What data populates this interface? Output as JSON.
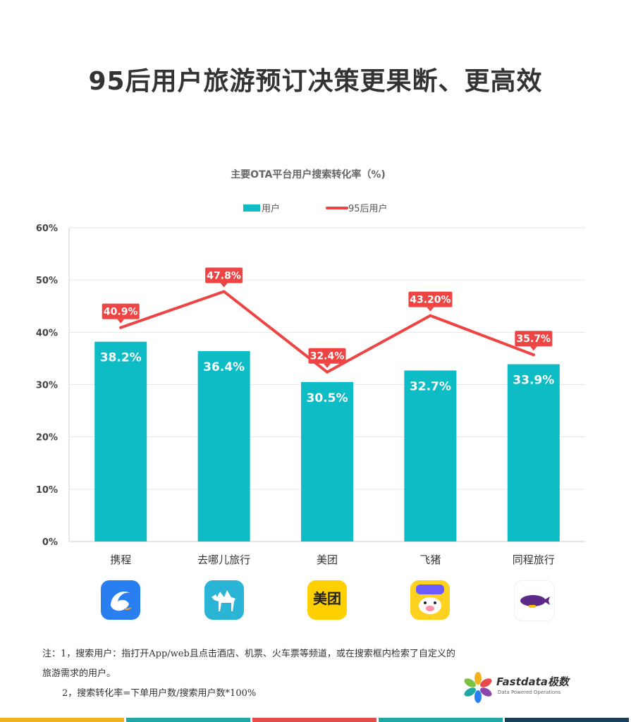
{
  "page": {
    "title": "95后用户旅游预订决策更果断、更高效"
  },
  "notes": {
    "line1": "注：1，搜索用户：指打开App/web且点击酒店、机票、火车票等频道，或在搜索框内检索了自定义的",
    "line2": "旅游需求的用户。",
    "line3": "2，搜索转化率=下单用户数/搜索用户数*100%"
  },
  "logo": {
    "name": "Fastdata极数",
    "tagline": "Data Powered Operations"
  },
  "apps": [
    {
      "name": "携程",
      "icon": "dolphin-icon",
      "color": "#2a7ff0"
    },
    {
      "name": "去哪儿旅行",
      "icon": "camel-icon",
      "color": "#2ab4d6"
    },
    {
      "name": "美团",
      "icon": "meituan-icon",
      "color": "#ffd000"
    },
    {
      "name": "飞猪",
      "icon": "pig-icon",
      "color": "#ffd21f"
    },
    {
      "name": "同程旅行",
      "icon": "blimp-icon",
      "color": "#ffffff"
    }
  ],
  "bottom_strip_colors": [
    "#f0b21f",
    "#1fa7a3",
    "#e64b4b",
    "#1fa7a3",
    "#1a3e5a"
  ],
  "chart_data": {
    "type": "bar",
    "title": "主要OTA平台用户搜索转化率（%)",
    "categories": [
      "携程",
      "去哪儿旅行",
      "美团",
      "飞猪",
      "同程旅行"
    ],
    "series": [
      {
        "name": "用户",
        "kind": "bar",
        "color": "#0dbcc4",
        "values": [
          38.2,
          36.4,
          30.5,
          32.7,
          33.9
        ],
        "labels": [
          "38.2%",
          "36.4%",
          "30.5%",
          "32.7%",
          "33.9%"
        ]
      },
      {
        "name": "95后用户",
        "kind": "line",
        "color": "#ee4444",
        "values": [
          40.9,
          47.8,
          32.4,
          43.2,
          35.7
        ],
        "labels": [
          "40.9%",
          "47.8%",
          "32.4%",
          "43.20%",
          "35.7%"
        ]
      }
    ],
    "y_ticks": [
      "0%",
      "10%",
      "20%",
      "30%",
      "40%",
      "50%",
      "60%"
    ],
    "ylim": [
      0,
      60
    ],
    "grid": true,
    "legend": "top-center"
  }
}
